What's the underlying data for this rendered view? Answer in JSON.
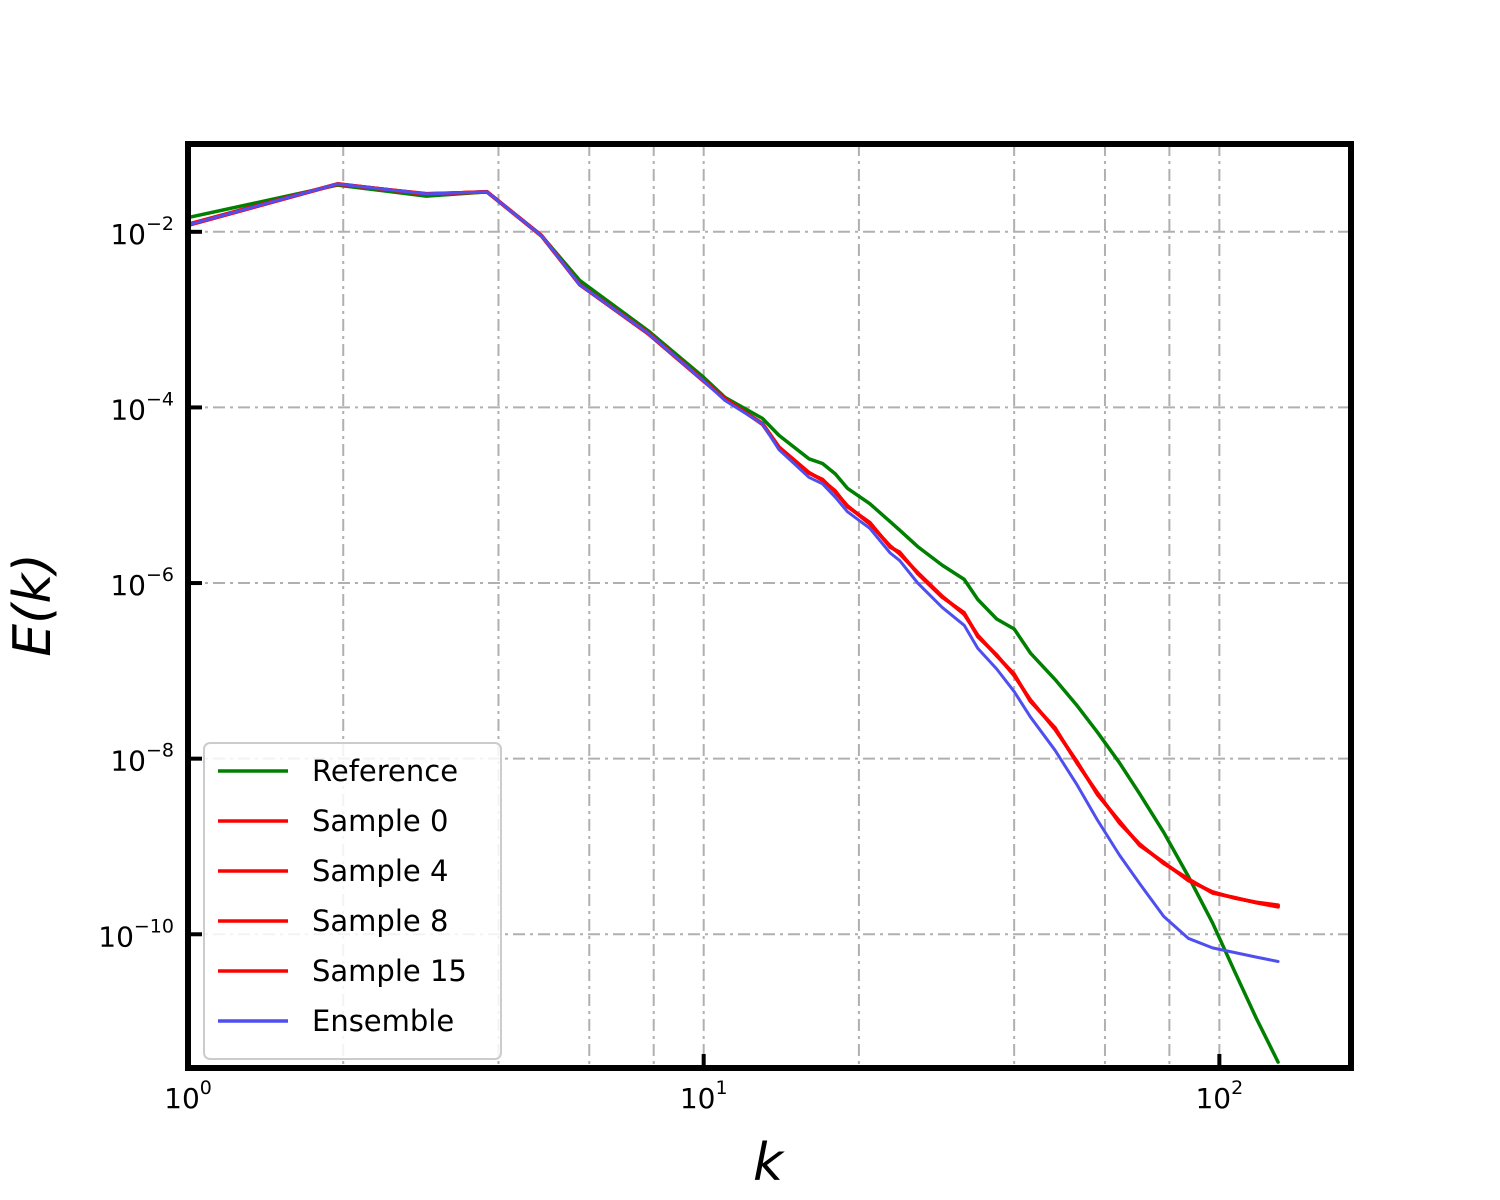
{
  "chart_data": {
    "type": "line",
    "title": "",
    "xlabel": "k",
    "ylabel": "E(k)",
    "xscale": "log",
    "yscale": "log",
    "xlim": [
      1,
      180
    ],
    "ylim": [
      3e-12,
      0.1
    ],
    "grid": true,
    "legend_position": "bottom-left",
    "x_ticks": [
      {
        "value": 1,
        "base": "10",
        "exp": "0"
      },
      {
        "value": 10,
        "base": "10",
        "exp": "1"
      },
      {
        "value": 100,
        "base": "10",
        "exp": "2"
      }
    ],
    "y_ticks": [
      {
        "value": 0.01,
        "base": "10",
        "exp": "−2"
      },
      {
        "value": 0.0001,
        "base": "10",
        "exp": "−4"
      },
      {
        "value": 1e-06,
        "base": "10",
        "exp": "−6"
      },
      {
        "value": 1e-08,
        "base": "10",
        "exp": "−8"
      },
      {
        "value": 1e-10,
        "base": "10",
        "exp": "−10"
      }
    ],
    "series": [
      {
        "name": "Reference",
        "color": "#008000",
        "width": 3.5,
        "x": [
          1,
          1.95,
          2.9,
          3.8,
          4.85,
          5.75,
          7.8,
          10,
          11,
          13,
          14,
          16,
          17,
          18,
          19,
          21,
          23,
          24,
          26,
          29,
          32,
          34,
          37,
          40,
          43,
          48,
          53,
          58,
          64,
          70,
          78,
          87,
          97,
          107,
          118,
          130
        ],
        "y": [
          0.0145,
          0.034,
          0.0255,
          0.0285,
          0.009,
          0.0028,
          0.00075,
          0.00022,
          0.00013,
          7.5e-05,
          4.8e-05,
          2.6e-05,
          2.3e-05,
          1.75e-05,
          1.2e-05,
          8e-06,
          5e-06,
          4e-06,
          2.6e-06,
          1.6e-06,
          1.1e-06,
          6.5e-07,
          3.9e-07,
          3e-07,
          1.6e-07,
          8e-08,
          4e-08,
          2e-08,
          9e-09,
          4e-09,
          1.45e-09,
          4.6e-10,
          1.35e-10,
          3.8e-11,
          1.1e-11,
          3.5e-12
        ]
      },
      {
        "name": "Sample 0",
        "color": "#ff0000",
        "width": 3.5,
        "x": [
          1,
          1.95,
          2.9,
          3.8,
          4.85,
          5.75,
          7.8,
          10,
          11,
          13,
          14,
          16,
          17,
          18,
          19,
          21,
          23,
          24,
          26,
          29,
          32,
          34,
          37,
          40,
          43,
          48,
          53,
          58,
          64,
          70,
          78,
          87,
          97,
          107,
          118,
          130
        ],
        "y": [
          0.012,
          0.035,
          0.027,
          0.0285,
          0.009,
          0.0025,
          0.0007,
          0.0002,
          0.000125,
          6.5e-05,
          3.5e-05,
          1.8e-05,
          1.5e-05,
          1.1e-05,
          7.5e-06,
          4.8e-06,
          2.6e-06,
          2.2e-06,
          1.3e-06,
          7e-07,
          4.5e-07,
          2.5e-07,
          1.5e-07,
          9e-08,
          4.6e-08,
          2.2e-08,
          9e-09,
          4e-09,
          1.9e-09,
          1.05e-09,
          6.5e-10,
          4.2e-10,
          3e-10,
          2.6e-10,
          2.3e-10,
          2.1e-10
        ]
      },
      {
        "name": "Sample 4",
        "color": "#ff0000",
        "width": 3.5,
        "x": [
          1,
          1.95,
          2.9,
          3.8,
          4.85,
          5.75,
          7.8,
          10,
          11,
          13,
          14,
          16,
          17,
          18,
          19,
          21,
          23,
          24,
          26,
          29,
          32,
          34,
          37,
          40,
          43,
          48,
          53,
          58,
          64,
          70,
          78,
          87,
          97,
          107,
          118,
          130
        ],
        "y": [
          0.0122,
          0.0352,
          0.0268,
          0.0287,
          0.0091,
          0.0025,
          0.00071,
          0.000202,
          0.000126,
          6.4e-05,
          3.45e-05,
          1.78e-05,
          1.52e-05,
          1.08e-05,
          7.6e-06,
          4.7e-06,
          2.65e-06,
          2.15e-06,
          1.32e-06,
          7.1e-07,
          4.4e-07,
          2.55e-07,
          1.48e-07,
          9.2e-08,
          4.5e-08,
          2.25e-08,
          8.8e-09,
          4.1e-09,
          1.85e-09,
          1.07e-09,
          6.4e-10,
          4.3e-10,
          2.95e-10,
          2.62e-10,
          2.28e-10,
          2.05e-10
        ]
      },
      {
        "name": "Sample 8",
        "color": "#ff0000",
        "width": 3.5,
        "x": [
          1,
          1.95,
          2.9,
          3.8,
          4.85,
          5.75,
          7.8,
          10,
          11,
          13,
          14,
          16,
          17,
          18,
          19,
          21,
          23,
          24,
          26,
          29,
          32,
          34,
          37,
          40,
          43,
          48,
          53,
          58,
          64,
          70,
          78,
          87,
          97,
          107,
          118,
          130
        ],
        "y": [
          0.0118,
          0.0348,
          0.0272,
          0.0283,
          0.0089,
          0.0025,
          0.00069,
          0.000198,
          0.000124,
          6.6e-05,
          3.55e-05,
          1.82e-05,
          1.48e-05,
          1.12e-05,
          7.4e-06,
          4.9e-06,
          2.55e-06,
          2.25e-06,
          1.28e-06,
          6.9e-07,
          4.6e-07,
          2.45e-07,
          1.52e-07,
          8.8e-08,
          4.7e-08,
          2.15e-08,
          9.2e-09,
          3.9e-09,
          1.95e-09,
          1.03e-09,
          6.6e-10,
          4.1e-10,
          3.05e-10,
          2.58e-10,
          2.32e-10,
          2.15e-10
        ]
      },
      {
        "name": "Sample 15",
        "color": "#ff0000",
        "width": 3.5,
        "x": [
          1,
          1.95,
          2.9,
          3.8,
          4.85,
          5.75,
          7.8,
          10,
          11,
          13,
          14,
          16,
          17,
          18,
          19,
          21,
          23,
          24,
          26,
          29,
          32,
          34,
          37,
          40,
          43,
          48,
          53,
          58,
          64,
          70,
          78,
          87,
          97,
          107,
          118,
          130
        ],
        "y": [
          0.0121,
          0.0351,
          0.0269,
          0.0286,
          0.009,
          0.0025,
          0.000705,
          0.000201,
          0.000125,
          6.5e-05,
          3.5e-05,
          1.8e-05,
          1.5e-05,
          1.1e-05,
          7.5e-06,
          4.8e-06,
          2.6e-06,
          2.2e-06,
          1.3e-06,
          7e-07,
          4.5e-07,
          2.5e-07,
          1.5e-07,
          9e-08,
          4.6e-08,
          2.2e-08,
          9e-09,
          4e-09,
          1.9e-09,
          1.05e-09,
          6.5e-10,
          4.2e-10,
          3e-10,
          2.6e-10,
          2.3e-10,
          2.1e-10
        ]
      },
      {
        "name": "Ensemble",
        "color": "#4f4ff0",
        "width": 3,
        "x": [
          1,
          1.95,
          2.9,
          3.8,
          4.85,
          5.75,
          7.8,
          10,
          11,
          13,
          14,
          16,
          17,
          18,
          19,
          21,
          23,
          24,
          26,
          29,
          32,
          34,
          37,
          40,
          43,
          48,
          53,
          58,
          64,
          70,
          78,
          87,
          97,
          107,
          118,
          130
        ],
        "y": [
          0.012,
          0.035,
          0.027,
          0.0285,
          0.009,
          0.0025,
          0.0007,
          0.0002,
          0.00012,
          6.5e-05,
          3.3e-05,
          1.6e-05,
          1.35e-05,
          9.5e-06,
          6.5e-06,
          4.2e-06,
          2.2e-06,
          1.8e-06,
          1e-06,
          5.3e-07,
          3.3e-07,
          1.8e-07,
          1.05e-07,
          5.8e-08,
          3e-08,
          1.25e-08,
          5e-09,
          2e-09,
          8e-10,
          3.8e-10,
          1.6e-10,
          9e-11,
          7e-11,
          6.2e-11,
          5.5e-11,
          4.9e-11
        ]
      }
    ]
  }
}
